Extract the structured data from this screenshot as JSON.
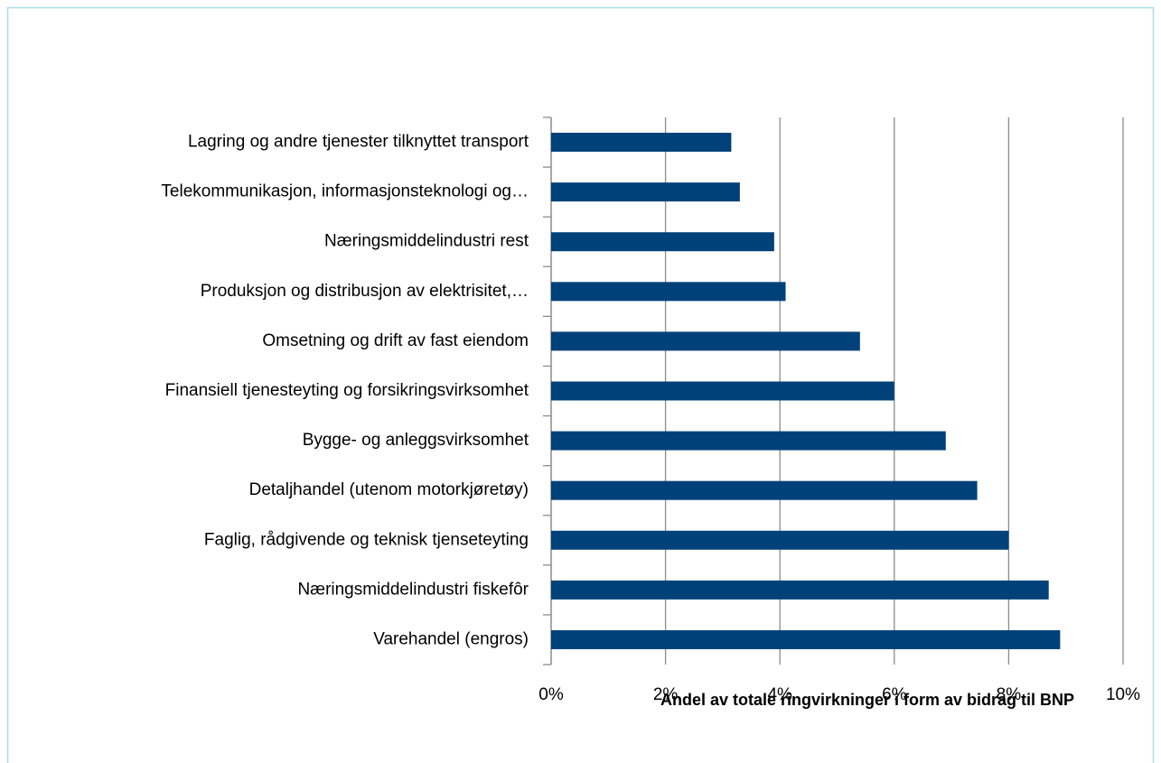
{
  "chart_data": {
    "type": "bar",
    "orientation": "horizontal",
    "xlabel": "Andel av totale ringvirkninger i form av bidrag til BNP",
    "categories": [
      "Lagring og andre tjenester tilknyttet transport",
      "Telekommunikasjon, informasjonsteknologi og…",
      "Næringsmiddelindustri rest",
      "Produksjon og distribusjon av elektrisitet,…",
      "Omsetning og drift av fast eiendom",
      "Finansiell tjenesteyting og forsikringsvirksomhet",
      "Bygge- og anleggsvirksomhet",
      "Detaljhandel (utenom motorkjøretøy)",
      "Faglig, rådgivende og teknisk tjenseteyting",
      "Næringsmiddelindustri fiskefôr",
      "Varehandel (engros)"
    ],
    "values": [
      3.15,
      3.3,
      3.9,
      4.1,
      5.4,
      6.0,
      6.9,
      7.45,
      8.0,
      8.7,
      8.9
    ],
    "color": "#004179",
    "xlim": [
      0,
      10
    ],
    "xticks": [
      {
        "value": 0,
        "label": "0%"
      },
      {
        "value": 2,
        "label": "2%"
      },
      {
        "value": 4,
        "label": "4%"
      },
      {
        "value": 6,
        "label": "6%"
      },
      {
        "value": 8,
        "label": "8%"
      },
      {
        "value": 10,
        "label": "10%"
      }
    ],
    "grid": true
  }
}
